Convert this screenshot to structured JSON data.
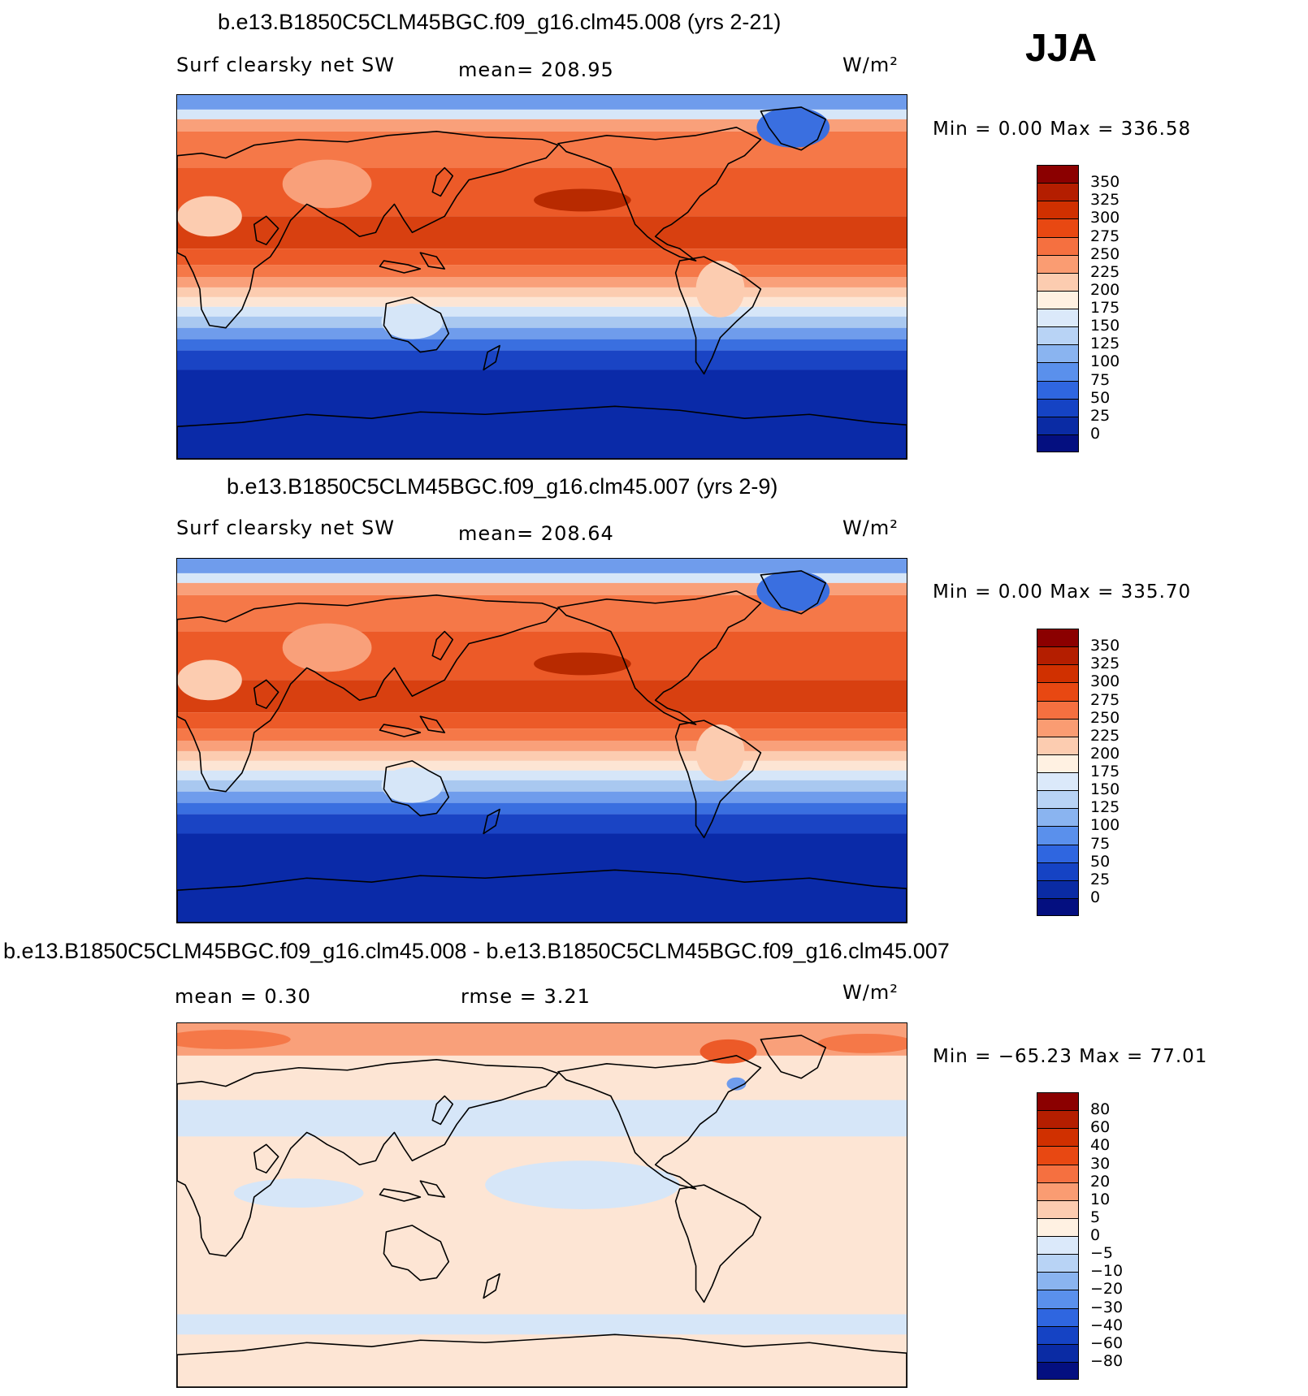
{
  "season": "JJA",
  "panels": [
    {
      "title": "b.e13.B1850C5CLM45BGC.f09_g16.clm45.008 (yrs 2-21)",
      "variable": "Surf clearsky net SW",
      "stat1": "mean=  208.95",
      "stat2": "",
      "units": "W/m²",
      "minmax": "Min =     0.00  Max  =  336.58",
      "colorbar_labels": [
        "350",
        "325",
        "300",
        "275",
        "250",
        "225",
        "200",
        "175",
        "150",
        "125",
        "100",
        "75",
        "50",
        "25",
        "0"
      ],
      "colorbar_colors": [
        "#8b0000",
        "#b41e00",
        "#d03000",
        "#e84812",
        "#f57040",
        "#fa9c72",
        "#fcccb0",
        "#fff1e2",
        "#dbe9fa",
        "#b8d3f5",
        "#8ab4f0",
        "#5a90ec",
        "#2f66e0",
        "#1543c4",
        "#0a2ba4",
        "#040f80"
      ]
    },
    {
      "title": "b.e13.B1850C5CLM45BGC.f09_g16.clm45.007 (yrs 2-9)",
      "variable": "Surf clearsky net SW",
      "stat1": "mean=  208.64",
      "stat2": "",
      "units": "W/m²",
      "minmax": "Min =     0.00  Max  =  335.70",
      "colorbar_labels": [
        "350",
        "325",
        "300",
        "275",
        "250",
        "225",
        "200",
        "175",
        "150",
        "125",
        "100",
        "75",
        "50",
        "25",
        "0"
      ],
      "colorbar_colors": [
        "#8b0000",
        "#b41e00",
        "#d03000",
        "#e84812",
        "#f57040",
        "#fa9c72",
        "#fcccb0",
        "#fff1e2",
        "#dbe9fa",
        "#b8d3f5",
        "#8ab4f0",
        "#5a90ec",
        "#2f66e0",
        "#1543c4",
        "#0a2ba4",
        "#040f80"
      ]
    },
    {
      "title": "b.e13.B1850C5CLM45BGC.f09_g16.clm45.008 - b.e13.B1850C5CLM45BGC.f09_g16.clm45.007",
      "variable": "",
      "stat1": "mean =     0.30",
      "stat2": "rmse =     3.21",
      "units": "W/m²",
      "minmax": "Min  =  −65.23  Max  =    77.01",
      "colorbar_labels": [
        "80",
        "60",
        "40",
        "30",
        "20",
        "10",
        "5",
        "0",
        "−5",
        "−10",
        "−20",
        "−30",
        "−40",
        "−60",
        "−80"
      ],
      "colorbar_colors": [
        "#8b0000",
        "#b41e00",
        "#d03000",
        "#e84812",
        "#f57040",
        "#fa9c72",
        "#fcccb0",
        "#fff1e2",
        "#dbe9fa",
        "#b8d3f5",
        "#8ab4f0",
        "#5a90ec",
        "#2f66e0",
        "#1543c4",
        "#0a2ba4",
        "#040f80"
      ]
    }
  ],
  "map_colors": {
    "deep_red": "#b82a00",
    "red": "#d84010",
    "orange_red": "#ec5a28",
    "orange": "#f57848",
    "salmon": "#f9a07a",
    "peach": "#fcccb0",
    "cream": "#fde5d4",
    "pale_blue": "#d6e6f8",
    "light_blue": "#a9c8f0",
    "mid_blue": "#6f9cec",
    "blue": "#3a6fe0",
    "dark_blue": "#1a44c4",
    "navy": "#0a2aa8",
    "coast": "#000000"
  }
}
